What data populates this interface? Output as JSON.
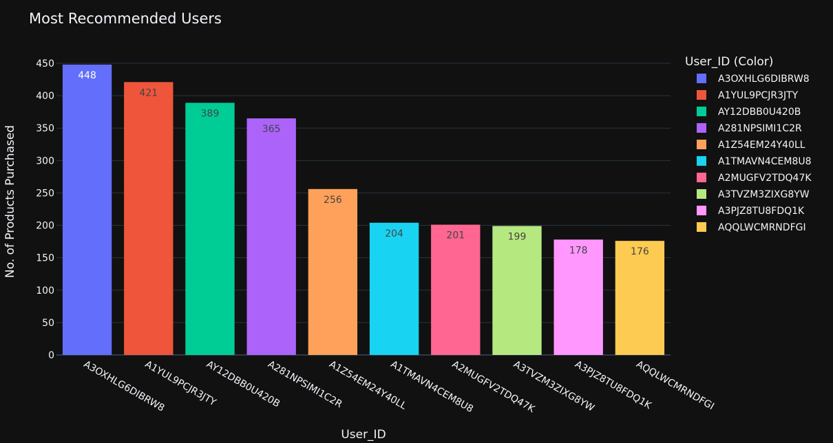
{
  "chart_data": {
    "type": "bar",
    "title": "Most Recommended Users",
    "xlabel": "User_ID",
    "ylabel": "No. of Products Purchased",
    "ylim": [
      0,
      450
    ],
    "y_ticks": [
      0,
      50,
      100,
      150,
      200,
      250,
      300,
      350,
      400,
      450
    ],
    "grid": true,
    "legend_title": "User_ID (Color)",
    "legend_position": "right",
    "categories": [
      "A3OXHLG6DIBRW8",
      "A1YUL9PCJR3JTY",
      "AY12DBB0U420B",
      "A281NPSIMI1C2R",
      "A1Z54EM24Y40LL",
      "A1TMAVN4CEM8U8",
      "A2MUGFV2TDQ47K",
      "A3TVZM3ZIXG8YW",
      "A3PJZ8TU8FDQ1K",
      "AQQLWCMRNDFGI"
    ],
    "values": [
      448,
      421,
      389,
      365,
      256,
      204,
      201,
      199,
      178,
      176
    ],
    "colors": [
      "#636efa",
      "#EF553B",
      "#00cc96",
      "#ab63fa",
      "#FFA15A",
      "#19d3f3",
      "#FF6692",
      "#B6E880",
      "#FF97FF",
      "#FECB52"
    ],
    "label_colors": [
      "#ffffff",
      "#444444",
      "#444444",
      "#444444",
      "#444444",
      "#444444",
      "#444444",
      "#444444",
      "#444444",
      "#444444"
    ]
  }
}
